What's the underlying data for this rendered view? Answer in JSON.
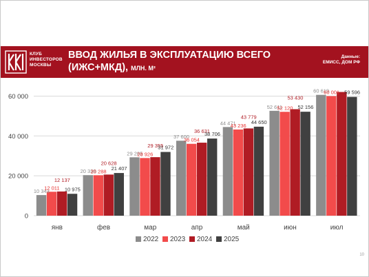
{
  "header": {
    "logo_lines": [
      "КЛУБ",
      "ИНВЕСТОРОВ",
      "МОСКВЫ"
    ],
    "title_line1": "ВВОД ЖИЛЬЯ В ЭКСПЛУАТАЦИЮ ВСЕГО",
    "title_line2": "(ИЖС+МКД),",
    "title_unit": "МЛН. М²",
    "source_line1": "Данные:",
    "source_line2": "ЕМИСС, ДОМ РФ"
  },
  "page_number": "10",
  "colors": {
    "brand": "#a3121f",
    "s2022": "#8c8c8c",
    "s2023": "#f24b4b",
    "s2024": "#b01c24",
    "s2025": "#404040"
  },
  "chart_data": {
    "type": "bar",
    "categories": [
      "янв",
      "фев",
      "мар",
      "апр",
      "май",
      "июн",
      "июл"
    ],
    "series": [
      {
        "name": "2022",
        "values": [
          10343,
          20338,
          29285,
          37600,
          44471,
          52611,
          60619
        ]
      },
      {
        "name": "2023",
        "values": [
          12011,
          20288,
          28926,
          36054,
          43236,
          52120,
          60001
        ]
      },
      {
        "name": "2024",
        "values": [
          12137,
          20628,
          29355,
          36631,
          43779,
          53430,
          62062
        ]
      },
      {
        "name": "2025",
        "values": [
          10975,
          21407,
          31972,
          38706,
          44650,
          52156,
          59596
        ]
      }
    ],
    "data_labels": [
      [
        "10 343",
        "20 338",
        "29 285",
        "37 600",
        "44 471",
        "52 611",
        "60 619"
      ],
      [
        "12 011",
        "20 288",
        "28 926",
        "36 054",
        "43 236",
        "52 120",
        "60 001"
      ],
      [
        "12 137",
        "20 628",
        "29 355",
        "36 631",
        "43 779",
        "53 430",
        "62 062"
      ],
      [
        "10 975",
        "21 407",
        "31 972",
        "38 706",
        "44 650",
        "52 156",
        "59 596"
      ]
    ],
    "y_ticks": [
      "0",
      "20 000",
      "40 000",
      "60 000"
    ],
    "y_tick_values": [
      0,
      20000,
      40000,
      60000
    ],
    "ylim": [
      0,
      65000
    ],
    "grid": true,
    "legend_position": "bottom"
  }
}
